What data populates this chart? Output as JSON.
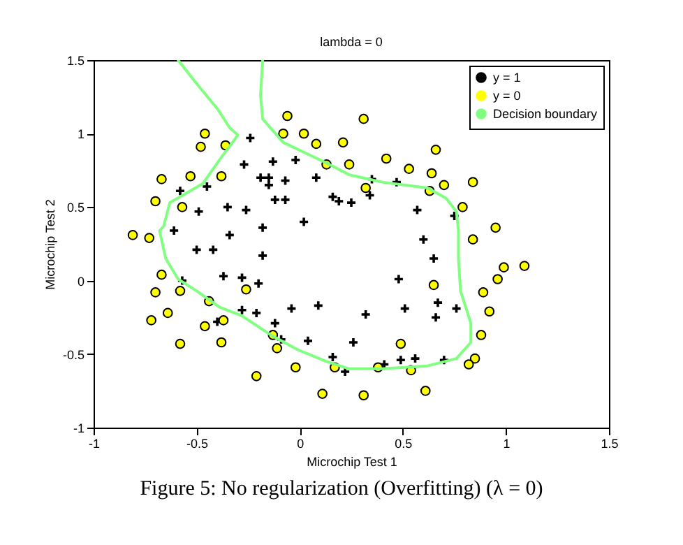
{
  "chart_data": {
    "type": "scatter",
    "title": "lambda = 0",
    "xlabel": "Microchip Test 1",
    "ylabel": "Microchip Test 2",
    "xlim": [
      -1,
      1.5
    ],
    "ylim": [
      -1,
      1.5
    ],
    "xticks": [
      -1,
      -0.5,
      0,
      0.5,
      1,
      1.5
    ],
    "yticks": [
      -1,
      -0.5,
      0,
      0.5,
      1,
      1.5
    ],
    "legend": "top right",
    "annotations": [
      "Figure 5: No regularization (Overfitting) (λ = 0)"
    ],
    "series": [
      {
        "name": "y = 1",
        "marker": "cross",
        "color": "#000000",
        "x": [
          -0.24,
          -0.27,
          -0.13,
          -0.02,
          -0.19,
          -0.15,
          -0.07,
          -0.15,
          0.08,
          -0.58,
          -0.45,
          -0.35,
          -0.26,
          -0.12,
          -0.07,
          -0.49,
          0.16,
          0.19,
          -0.61,
          -0.18,
          -0.34,
          0.02,
          0.25,
          0.35,
          0.47,
          0.34,
          0.57,
          0.75,
          0.6,
          -0.5,
          -0.42,
          -0.18,
          -0.37,
          -0.28,
          -0.57,
          -0.2,
          -0.28,
          -0.21,
          -0.04,
          0.09,
          -0.4,
          -0.12,
          -0.09,
          0.04,
          0.16,
          0.22,
          0.65,
          0.48,
          0.67,
          0.51,
          0.66,
          0.76,
          0.32,
          0.26,
          0.49,
          0.56,
          0.7,
          0.41
        ],
        "values": [
          0.97,
          0.79,
          0.81,
          0.82,
          0.7,
          0.7,
          0.68,
          0.65,
          0.7,
          0.61,
          0.64,
          0.5,
          0.48,
          0.55,
          0.55,
          0.47,
          0.57,
          0.54,
          0.34,
          0.36,
          0.31,
          0.4,
          0.53,
          0.69,
          0.67,
          0.58,
          0.48,
          0.44,
          0.28,
          0.21,
          0.21,
          0.17,
          0.03,
          0.02,
          0,
          -0.02,
          -0.2,
          -0.22,
          -0.19,
          -0.17,
          -0.28,
          -0.29,
          -0.4,
          -0.41,
          -0.52,
          -0.62,
          0.15,
          0.01,
          -0.15,
          -0.19,
          -0.25,
          -0.19,
          -0.23,
          -0.42,
          -0.54,
          -0.53,
          -0.54,
          -0.57
        ]
      },
      {
        "name": "y = 0",
        "marker": "circle",
        "color": "#ffff00",
        "x": [
          -0.46,
          -0.48,
          -0.36,
          -0.67,
          -0.53,
          -0.38,
          -0.7,
          -0.57,
          -0.81,
          -0.73,
          -0.06,
          -0.08,
          0.02,
          0.08,
          0.21,
          0.13,
          0.24,
          0.31,
          0.66,
          0.42,
          0.53,
          0.64,
          0.32,
          0.7,
          0.84,
          0.63,
          0.79,
          0.95,
          0.84,
          -0.67,
          -0.7,
          -0.58,
          -0.72,
          -0.64,
          -0.44,
          -0.46,
          -0.37,
          -0.58,
          -0.38,
          -0.26,
          -0.13,
          -0.11,
          -0.21,
          -0.02,
          0.11,
          0.17,
          0.99,
          1.09,
          0.96,
          0.65,
          0.89,
          0.92,
          0.88,
          0.49,
          0.85,
          0.82,
          0.38,
          0.54,
          0.31,
          0.61
        ],
        "values": [
          1,
          0.91,
          0.92,
          0.69,
          0.71,
          0.71,
          0.54,
          0.5,
          0.31,
          0.29,
          1.12,
          1,
          1,
          0.93,
          0.94,
          0.79,
          0.79,
          1.1,
          0.89,
          0.83,
          0.76,
          0.73,
          0.63,
          0.65,
          0.67,
          0.61,
          0.5,
          0.36,
          0.28,
          0.04,
          -0.08,
          -0.07,
          -0.27,
          -0.22,
          -0.14,
          -0.31,
          -0.27,
          -0.43,
          -0.42,
          -0.06,
          -0.37,
          -0.46,
          -0.65,
          -0.59,
          -0.77,
          -0.59,
          0.09,
          0.1,
          0.01,
          -0.03,
          -0.08,
          -0.21,
          -0.37,
          -0.43,
          -0.53,
          -0.57,
          -0.59,
          -0.61,
          -0.78,
          -0.75
        ]
      },
      {
        "name": "Decision boundary",
        "type": "line",
        "marker": "none",
        "color": "#80ff80",
        "x": [
          -0.59,
          -0.5,
          -0.4,
          -0.34,
          -0.3,
          -0.39,
          -0.47,
          -0.63,
          -0.66,
          -0.68,
          -0.65,
          -0.59,
          -0.5,
          -0.39,
          -0.28,
          -0.14,
          -0.01,
          0.13,
          0.24,
          0.4,
          0.62,
          0.76,
          0.83,
          0.83,
          0.78,
          0.77,
          0.77,
          0.76,
          0.71,
          0.62,
          0.4,
          0.24,
          0.13,
          -0.08,
          -0.18,
          -0.19,
          -0.18
        ],
        "values": [
          1.5,
          1.34,
          1.17,
          1.04,
          0.99,
          0.82,
          0.66,
          0.53,
          0.37,
          0.34,
          0.15,
          0.01,
          -0.07,
          -0.18,
          -0.24,
          -0.37,
          -0.47,
          -0.55,
          -0.6,
          -0.6,
          -0.58,
          -0.53,
          -0.42,
          -0.29,
          -0.07,
          0.15,
          0.34,
          0.47,
          0.56,
          0.63,
          0.67,
          0.72,
          0.8,
          0.94,
          1.1,
          1.26,
          1.5
        ]
      }
    ]
  }
}
